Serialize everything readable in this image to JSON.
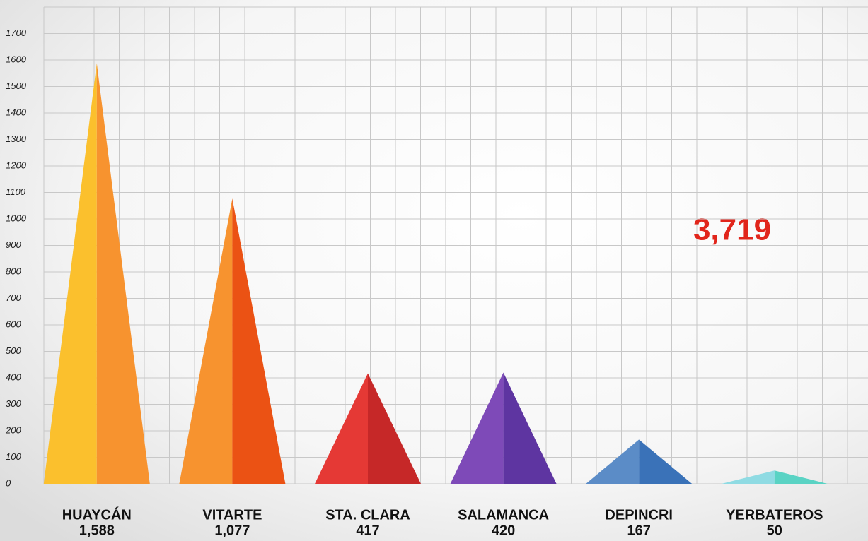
{
  "chart_data": {
    "type": "triangle-bar",
    "categories": [
      "HUAYCÁN",
      "VITARTE",
      "STA. CLARA",
      "SALAMANCA",
      "DEPINCRI",
      "YERBATEROS"
    ],
    "values": [
      1588,
      1077,
      417,
      420,
      167,
      50
    ],
    "value_labels": [
      "1,588",
      "1,077",
      "417",
      "420",
      "167",
      "50"
    ],
    "colors": [
      [
        "#fbc02d",
        "#f7932f"
      ],
      [
        "#f7932f",
        "#eb5214"
      ],
      [
        "#e53935",
        "#c62828"
      ],
      [
        "#7e4ab8",
        "#5e35a1"
      ],
      [
        "#5b8cc7",
        "#3a72b8"
      ],
      [
        "#8fdbe3",
        "#5ad3c4"
      ]
    ],
    "annotation": "3,719",
    "ylim": [
      0,
      1800
    ],
    "yticks": [
      0,
      100,
      200,
      300,
      400,
      500,
      600,
      700,
      800,
      900,
      1000,
      1100,
      1200,
      1300,
      1400,
      1500,
      1600,
      1700
    ],
    "grid": true
  }
}
